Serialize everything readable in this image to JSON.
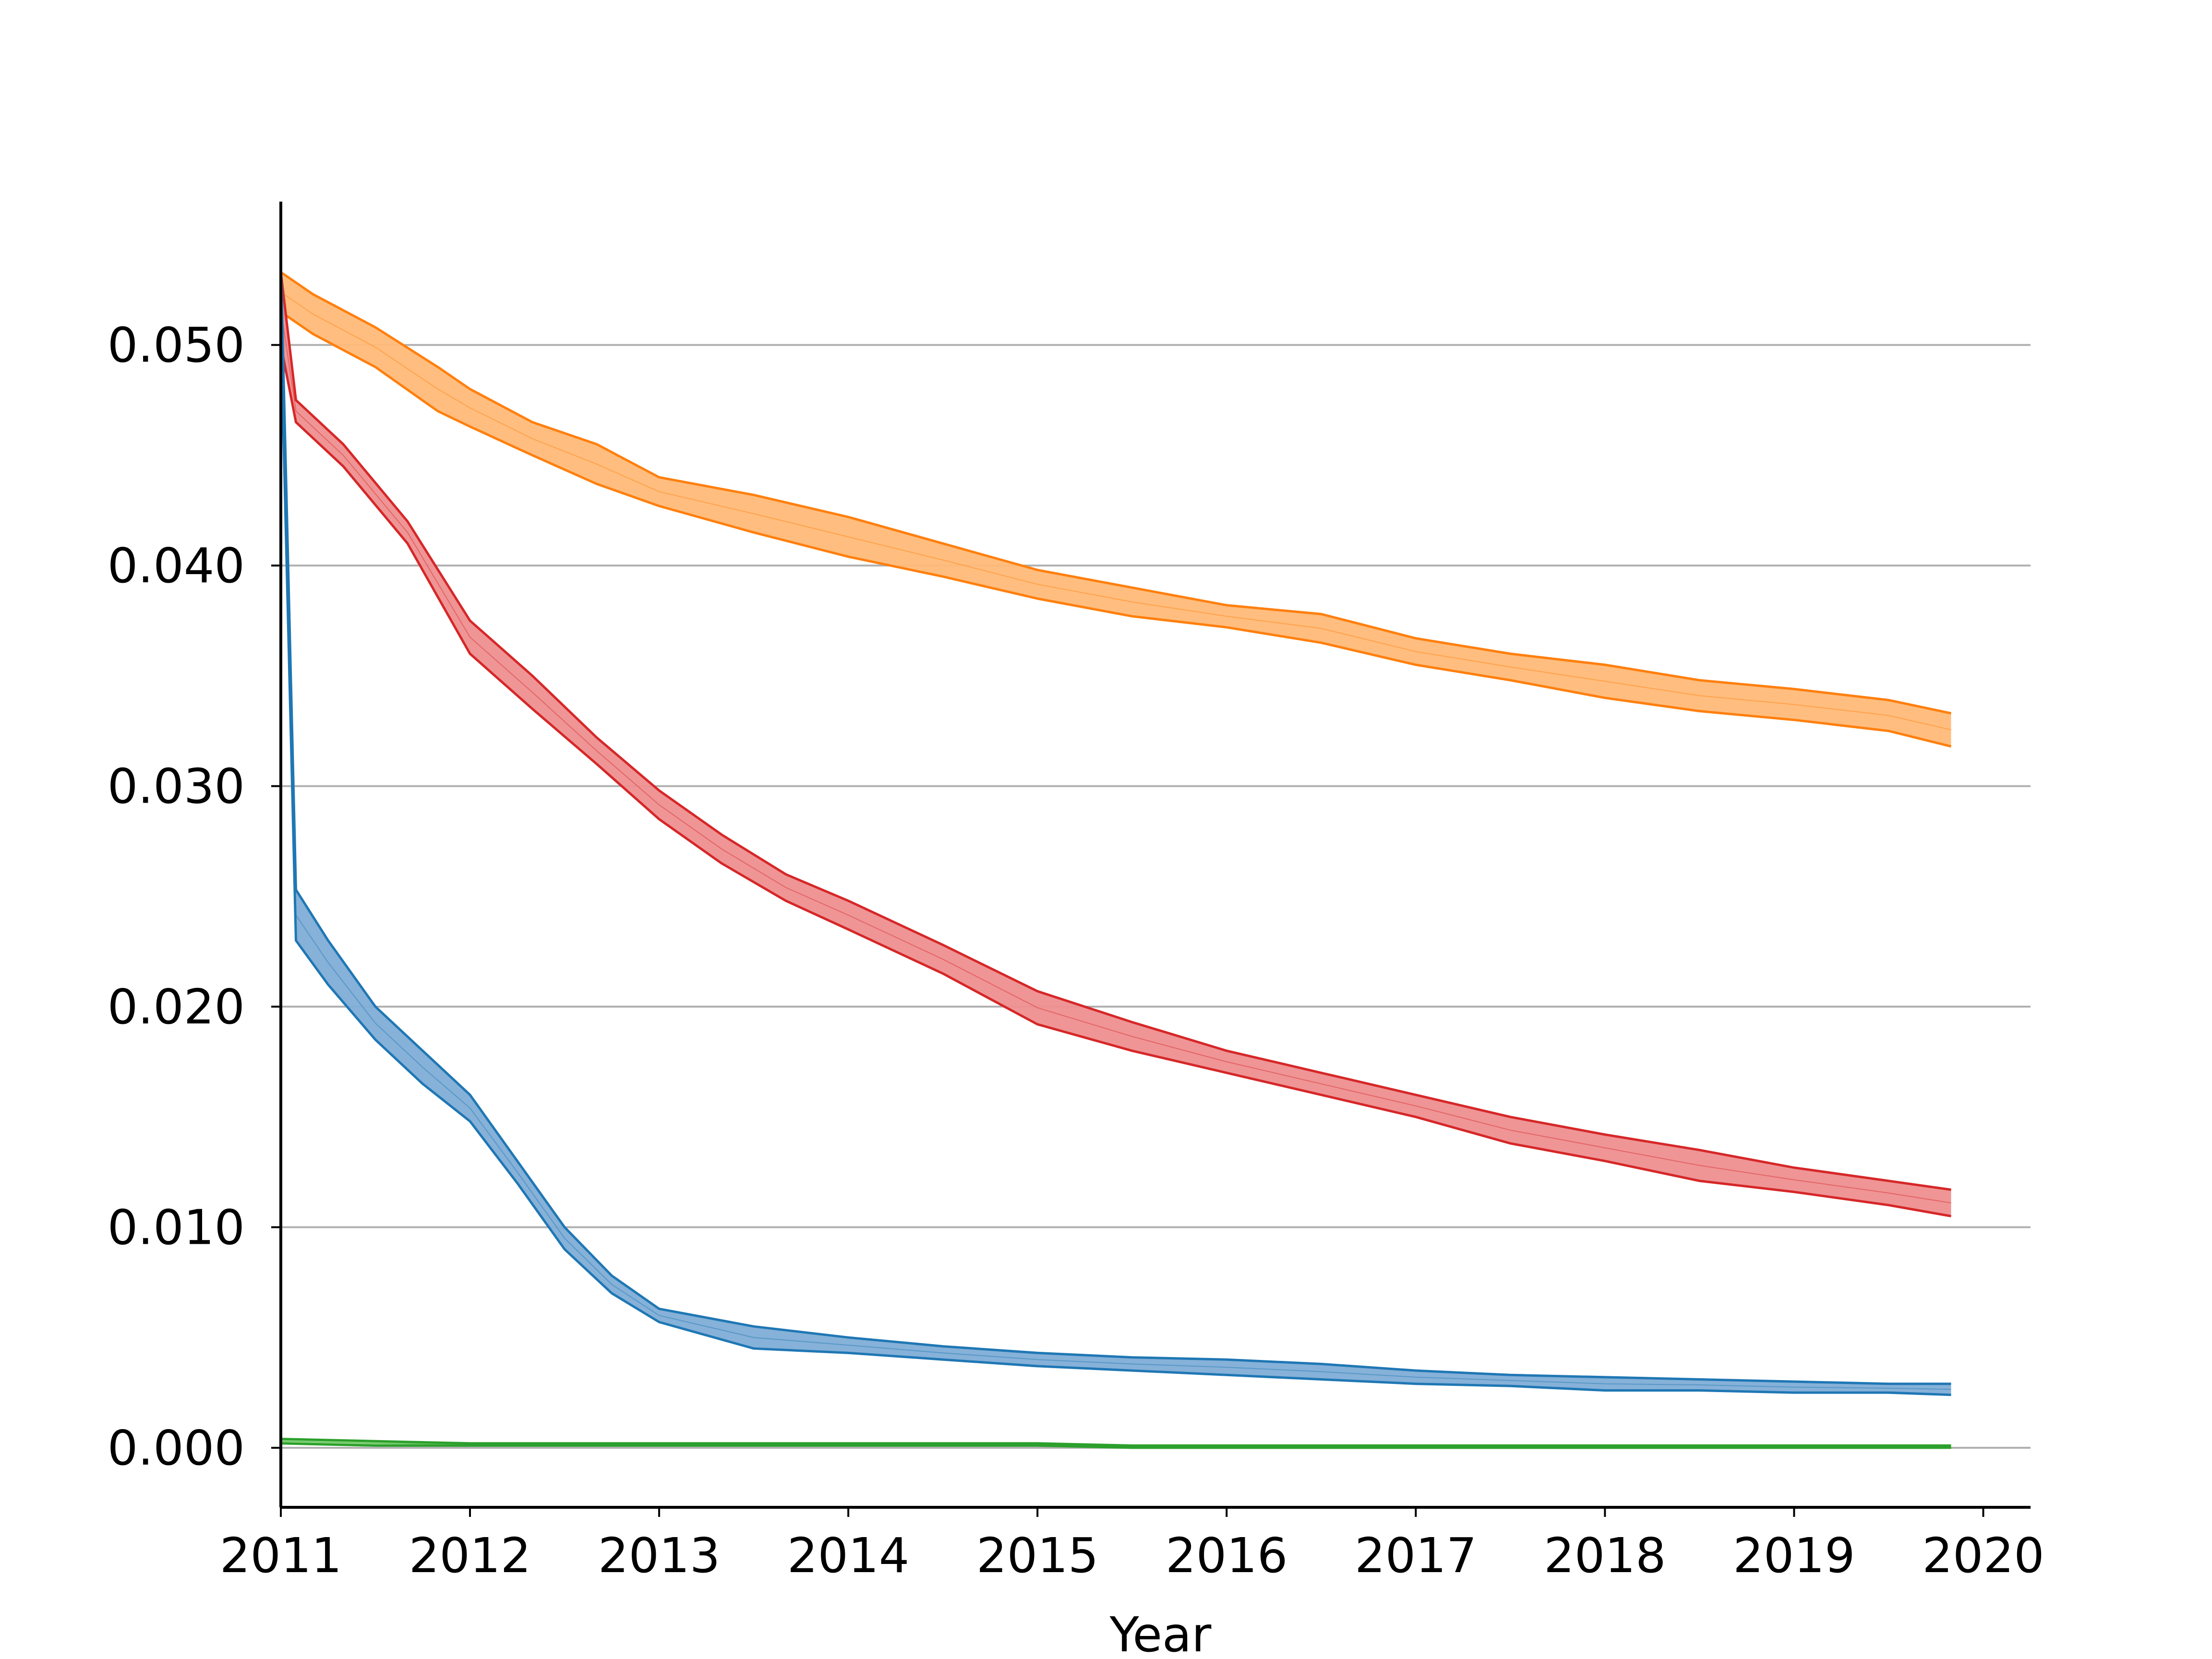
{
  "chart_data": {
    "type": "area",
    "title": "",
    "xlabel": "Year",
    "ylabel": "",
    "xlim": [
      2011.0,
      2020.25
    ],
    "ylim": [
      -0.0027,
      0.0565
    ],
    "x_ticks": [
      "2011",
      "2012",
      "2013",
      "2014",
      "2015",
      "2016",
      "2017",
      "2018",
      "2019",
      "2020"
    ],
    "y_ticks": [
      "0.000",
      "0.010",
      "0.020",
      "0.030",
      "0.040",
      "0.050"
    ],
    "grid": "horizontal",
    "legend": "none",
    "series": [
      {
        "color": "#ff7f0e",
        "fill": "#ffbb78",
        "points": [
          [
            2011.0,
            0.0515,
            0.0533
          ],
          [
            2011.17,
            0.0505,
            0.0523
          ],
          [
            2011.5,
            0.049,
            0.0508
          ],
          [
            2011.83,
            0.047,
            0.049
          ],
          [
            2012.0,
            0.0463,
            0.048
          ],
          [
            2012.33,
            0.045,
            0.0465
          ],
          [
            2012.67,
            0.0437,
            0.0455
          ],
          [
            2013.0,
            0.0427,
            0.044
          ],
          [
            2013.5,
            0.0415,
            0.0432
          ],
          [
            2014.0,
            0.0404,
            0.0422
          ],
          [
            2014.5,
            0.0395,
            0.041
          ],
          [
            2015.0,
            0.0385,
            0.0398
          ],
          [
            2015.5,
            0.0377,
            0.039
          ],
          [
            2016.0,
            0.0372,
            0.0382
          ],
          [
            2016.5,
            0.0365,
            0.0378
          ],
          [
            2017.0,
            0.0355,
            0.0367
          ],
          [
            2017.5,
            0.0348,
            0.036
          ],
          [
            2018.0,
            0.034,
            0.0355
          ],
          [
            2018.5,
            0.0334,
            0.0348
          ],
          [
            2019.0,
            0.033,
            0.0344
          ],
          [
            2019.5,
            0.0325,
            0.0339
          ],
          [
            2019.83,
            0.0318,
            0.0333
          ]
        ]
      },
      {
        "color": "#d62728",
        "fill": "#ee8f90",
        "points": [
          [
            2011.0,
            0.05,
            0.0533
          ],
          [
            2011.08,
            0.0465,
            0.0475
          ],
          [
            2011.33,
            0.0445,
            0.0455
          ],
          [
            2011.67,
            0.041,
            0.042
          ],
          [
            2012.0,
            0.036,
            0.0375
          ],
          [
            2012.33,
            0.0335,
            0.035
          ],
          [
            2012.67,
            0.031,
            0.0322
          ],
          [
            2013.0,
            0.0285,
            0.0298
          ],
          [
            2013.33,
            0.0265,
            0.0278
          ],
          [
            2013.67,
            0.0248,
            0.026
          ],
          [
            2014.0,
            0.0235,
            0.0248
          ],
          [
            2014.5,
            0.0215,
            0.0228
          ],
          [
            2015.0,
            0.0192,
            0.0207
          ],
          [
            2015.5,
            0.018,
            0.0193
          ],
          [
            2016.0,
            0.017,
            0.018
          ],
          [
            2016.5,
            0.016,
            0.017
          ],
          [
            2017.0,
            0.015,
            0.016
          ],
          [
            2017.5,
            0.0138,
            0.015
          ],
          [
            2018.0,
            0.013,
            0.0142
          ],
          [
            2018.5,
            0.0121,
            0.0135
          ],
          [
            2019.0,
            0.0116,
            0.0127
          ],
          [
            2019.5,
            0.011,
            0.0121
          ],
          [
            2019.83,
            0.0105,
            0.0117
          ]
        ]
      },
      {
        "color": "#1f77b4",
        "fill": "#7fadd6",
        "points": [
          [
            2011.0,
            0.0508,
            0.0538
          ],
          [
            2011.08,
            0.023,
            0.0253
          ],
          [
            2011.25,
            0.021,
            0.023
          ],
          [
            2011.5,
            0.0185,
            0.02
          ],
          [
            2011.75,
            0.0165,
            0.018
          ],
          [
            2012.0,
            0.0148,
            0.016
          ],
          [
            2012.25,
            0.012,
            0.013
          ],
          [
            2012.5,
            0.009,
            0.01
          ],
          [
            2012.75,
            0.007,
            0.0078
          ],
          [
            2013.0,
            0.0057,
            0.0063
          ],
          [
            2013.5,
            0.0045,
            0.0055
          ],
          [
            2014.0,
            0.0043,
            0.005
          ],
          [
            2014.5,
            0.004,
            0.0046
          ],
          [
            2015.0,
            0.0037,
            0.0043
          ],
          [
            2015.5,
            0.0035,
            0.0041
          ],
          [
            2016.0,
            0.0033,
            0.004
          ],
          [
            2016.5,
            0.0031,
            0.0038
          ],
          [
            2017.0,
            0.0029,
            0.0035
          ],
          [
            2017.5,
            0.0028,
            0.0033
          ],
          [
            2018.0,
            0.0026,
            0.0032
          ],
          [
            2018.5,
            0.0026,
            0.0031
          ],
          [
            2019.0,
            0.0025,
            0.003
          ],
          [
            2019.5,
            0.0025,
            0.0029
          ],
          [
            2019.83,
            0.0024,
            0.0029
          ]
        ]
      },
      {
        "color": "#2ca02c",
        "fill": "#98df8a",
        "points": [
          [
            2011.0,
            0.0002,
            0.0004
          ],
          [
            2011.5,
            0.0001,
            0.0003
          ],
          [
            2012.0,
            0.0001,
            0.0002
          ],
          [
            2013.0,
            0.0001,
            0.0002
          ],
          [
            2014.0,
            0.0001,
            0.0002
          ],
          [
            2015.0,
            0.0001,
            0.0002
          ],
          [
            2015.5,
            0.0,
            0.0001
          ],
          [
            2016.5,
            0.0,
            0.0001
          ],
          [
            2017.0,
            0.0,
            0.0001
          ],
          [
            2018.0,
            0.0,
            0.0001
          ],
          [
            2019.0,
            0.0,
            0.0001
          ],
          [
            2019.83,
            0.0,
            0.0001
          ]
        ]
      }
    ]
  }
}
